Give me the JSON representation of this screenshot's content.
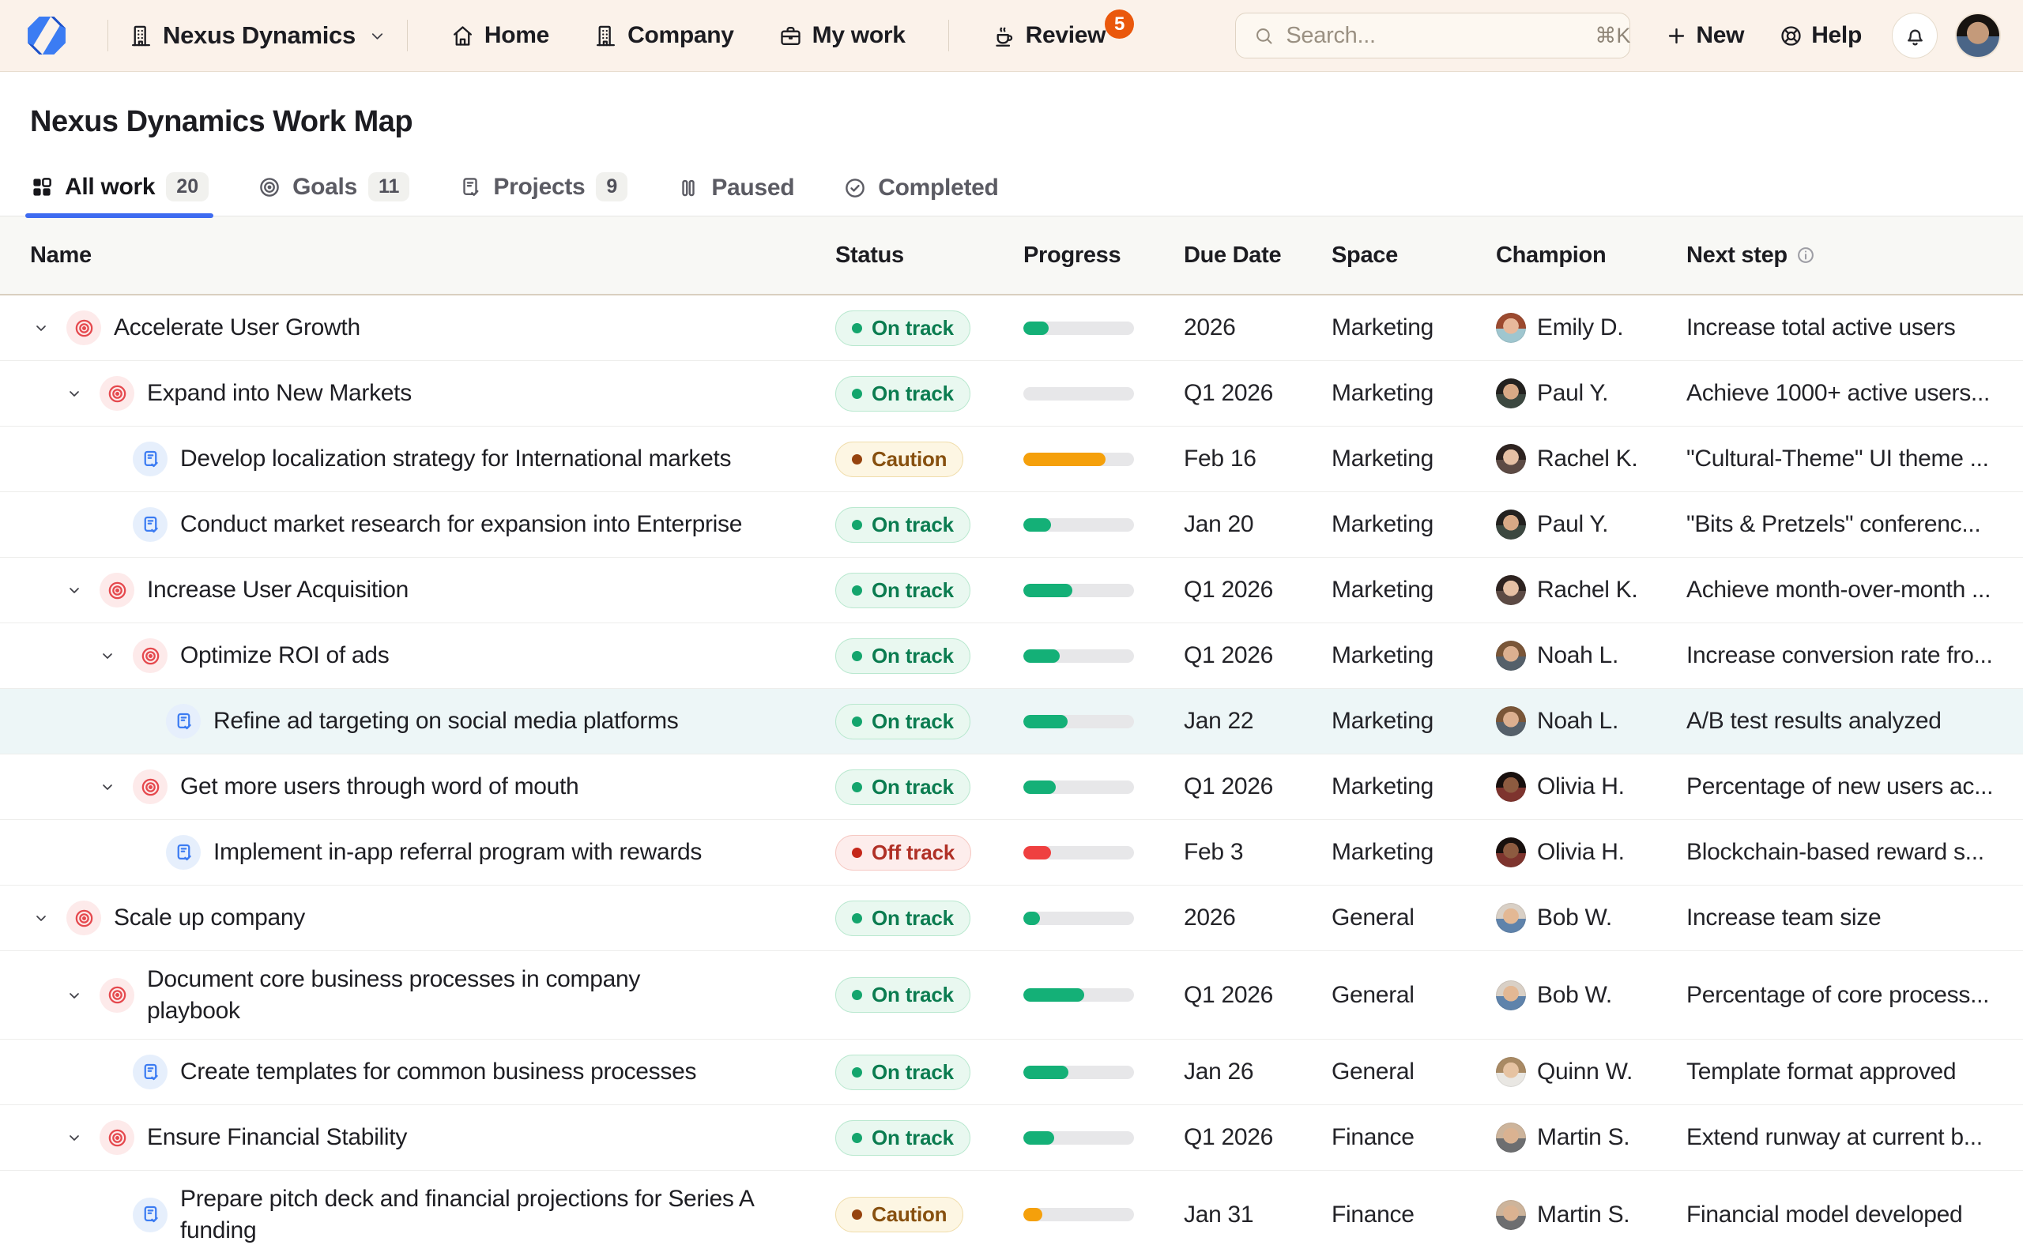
{
  "colors": {
    "topbar_bg": "#fbf2ea",
    "accent_blue": "#3e6bf0",
    "badge_orange": "#ea580c",
    "logo_blue": "#3b7cf3",
    "logo_blue_dark": "#1c50c8",
    "row_highlight": "#edf6f7",
    "progress_track": "#e7e7e9",
    "goal_icon": {
      "fg": "#e5484d",
      "bg": "#fdeaea"
    },
    "project_icon": {
      "fg": "#3c7cf2",
      "bg": "#e6effc"
    },
    "status": {
      "on_track": {
        "label": "On track",
        "bg": "#e9f8f0",
        "border": "#b9e8cf",
        "text": "#0b7c50",
        "dot": "#14a56d",
        "bar": "#14b077"
      },
      "caution": {
        "label": "Caution",
        "bg": "#fdf6e3",
        "border": "#f0ddab",
        "text": "#87500f",
        "dot": "#96430e",
        "bar": "#f5a00b"
      },
      "off_track": {
        "label": "Off track",
        "bg": "#fdedec",
        "border": "#f6c8c2",
        "text": "#b03026",
        "dot": "#c5271a",
        "bar": "#ef4040"
      }
    }
  },
  "topbar": {
    "workspace": {
      "label": "Nexus Dynamics"
    },
    "nav": [
      {
        "id": "home",
        "label": "Home",
        "icon": "home"
      },
      {
        "id": "company",
        "label": "Company",
        "icon": "building"
      },
      {
        "id": "my-work",
        "label": "My work",
        "icon": "briefcase"
      }
    ],
    "review": {
      "label": "Review",
      "icon": "coffee",
      "badge": "5"
    },
    "search": {
      "placeholder": "Search...",
      "shortcut": "⌘K"
    },
    "new_button": {
      "label": "New"
    },
    "help_button": {
      "label": "Help"
    }
  },
  "page": {
    "title": "Nexus Dynamics Work Map"
  },
  "tabs": [
    {
      "id": "all-work",
      "label": "All work",
      "count": "20",
      "icon": "grid",
      "active": true
    },
    {
      "id": "goals",
      "label": "Goals",
      "count": "11",
      "icon": "target",
      "active": false
    },
    {
      "id": "projects",
      "label": "Projects",
      "count": "9",
      "icon": "clipboard",
      "active": false
    },
    {
      "id": "paused",
      "label": "Paused",
      "count": null,
      "icon": "pause",
      "active": false
    },
    {
      "id": "completed",
      "label": "Completed",
      "count": null,
      "icon": "check-circle",
      "active": false
    }
  ],
  "table": {
    "columns": [
      {
        "key": "name",
        "label": "Name"
      },
      {
        "key": "status",
        "label": "Status"
      },
      {
        "key": "progress",
        "label": "Progress"
      },
      {
        "key": "due",
        "label": "Due Date"
      },
      {
        "key": "space",
        "label": "Space"
      },
      {
        "key": "champion",
        "label": "Champion"
      },
      {
        "key": "next",
        "label": "Next step",
        "info_icon": true
      }
    ],
    "rows": [
      {
        "kind": "goal",
        "level": 0,
        "expandable": true,
        "tall": false,
        "highlight": false,
        "name": "Accelerate User Growth",
        "status": "on_track",
        "progress": 23,
        "due": "2026",
        "space": "Marketing",
        "champion": "Emily D.",
        "avatar": "emily",
        "next": "Increase total active users"
      },
      {
        "kind": "goal",
        "level": 1,
        "expandable": true,
        "tall": false,
        "highlight": false,
        "name": "Expand into New Markets",
        "status": "on_track",
        "progress": 0,
        "due": "Q1 2026",
        "space": "Marketing",
        "champion": "Paul Y.",
        "avatar": "paul",
        "next": "Achieve 1000+ active users..."
      },
      {
        "kind": "project",
        "level": 2,
        "expandable": false,
        "tall": false,
        "highlight": false,
        "name": "Develop localization strategy for International markets",
        "status": "caution",
        "progress": 74,
        "due": "Feb 16",
        "space": "Marketing",
        "champion": "Rachel K.",
        "avatar": "rachel",
        "next": "\"Cultural-Theme\" UI theme ..."
      },
      {
        "kind": "project",
        "level": 2,
        "expandable": false,
        "tall": false,
        "highlight": false,
        "name": "Conduct market research for expansion into Enterprise",
        "status": "on_track",
        "progress": 25,
        "due": "Jan 20",
        "space": "Marketing",
        "champion": "Paul Y.",
        "avatar": "paul",
        "next": "\"Bits & Pretzels\" conferenc..."
      },
      {
        "kind": "goal",
        "level": 1,
        "expandable": true,
        "tall": false,
        "highlight": false,
        "name": "Increase User Acquisition",
        "status": "on_track",
        "progress": 44,
        "due": "Q1 2026",
        "space": "Marketing",
        "champion": "Rachel K.",
        "avatar": "rachel",
        "next": "Achieve month-over-month ..."
      },
      {
        "kind": "goal",
        "level": 2,
        "expandable": true,
        "tall": false,
        "highlight": false,
        "name": "Optimize ROI of ads",
        "status": "on_track",
        "progress": 33,
        "due": "Q1 2026",
        "space": "Marketing",
        "champion": "Noah L.",
        "avatar": "noah",
        "next": "Increase conversion rate fro..."
      },
      {
        "kind": "project",
        "level": 3,
        "expandable": false,
        "tall": false,
        "highlight": true,
        "name": "Refine ad targeting on social media platforms",
        "status": "on_track",
        "progress": 40,
        "due": "Jan 22",
        "space": "Marketing",
        "champion": "Noah L.",
        "avatar": "noah",
        "next": "A/B test results analyzed"
      },
      {
        "kind": "goal",
        "level": 2,
        "expandable": true,
        "tall": false,
        "highlight": false,
        "name": "Get more users through word of mouth",
        "status": "on_track",
        "progress": 29,
        "due": "Q1 2026",
        "space": "Marketing",
        "champion": "Olivia H.",
        "avatar": "olivia",
        "next": "Percentage of new users ac..."
      },
      {
        "kind": "project",
        "level": 3,
        "expandable": false,
        "tall": false,
        "highlight": false,
        "name": "Implement in-app referral program with rewards",
        "status": "off_track",
        "progress": 25,
        "due": "Feb 3",
        "space": "Marketing",
        "champion": "Olivia H.",
        "avatar": "olivia",
        "next": "Blockchain-based reward s..."
      },
      {
        "kind": "goal",
        "level": 0,
        "expandable": true,
        "tall": false,
        "highlight": false,
        "name": "Scale up company",
        "status": "on_track",
        "progress": 15,
        "due": "2026",
        "space": "General",
        "champion": "Bob W.",
        "avatar": "bob",
        "next": "Increase team size"
      },
      {
        "kind": "goal",
        "level": 1,
        "expandable": true,
        "tall": true,
        "highlight": false,
        "name": "Document core business processes in company playbook",
        "status": "on_track",
        "progress": 55,
        "due": "Q1 2026",
        "space": "General",
        "champion": "Bob W.",
        "avatar": "bob",
        "next": "Percentage of core process..."
      },
      {
        "kind": "project",
        "level": 2,
        "expandable": false,
        "tall": false,
        "highlight": false,
        "name": "Create templates for common business processes",
        "status": "on_track",
        "progress": 41,
        "due": "Jan 26",
        "space": "General",
        "champion": "Quinn W.",
        "avatar": "quinn",
        "next": "Template format approved"
      },
      {
        "kind": "goal",
        "level": 1,
        "expandable": true,
        "tall": false,
        "highlight": false,
        "name": "Ensure Financial Stability",
        "status": "on_track",
        "progress": 28,
        "due": "Q1 2026",
        "space": "Finance",
        "champion": "Martin S.",
        "avatar": "martin",
        "next": "Extend runway at current b..."
      },
      {
        "kind": "project",
        "level": 2,
        "expandable": false,
        "tall": true,
        "highlight": false,
        "name": "Prepare pitch deck and financial projections for Series A funding",
        "status": "caution",
        "progress": 17,
        "due": "Jan 31",
        "space": "Finance",
        "champion": "Martin S.",
        "avatar": "martin",
        "next": "Financial model developed"
      }
    ]
  },
  "avatars": {
    "me": {
      "hair": "#171310",
      "skin": "#c49a7a",
      "shirt": "#4a6587"
    },
    "emily": {
      "hair": "#9c4a2f",
      "skin": "#e8b99b",
      "shirt": "#9fc6cf"
    },
    "paul": {
      "hair": "#23211f",
      "skin": "#d8a986",
      "shirt": "#3c4840"
    },
    "rachel": {
      "hair": "#2e2320",
      "skin": "#e6c0a4",
      "shirt": "#5c4a44"
    },
    "noah": {
      "hair": "#7a5638",
      "skin": "#dcb090",
      "shirt": "#55606a"
    },
    "olivia": {
      "hair": "#18100e",
      "skin": "#8d5b40",
      "shirt": "#7e342e"
    },
    "bob": {
      "hair": "#d9d0c6",
      "skin": "#e3b894",
      "shirt": "#5f83ab"
    },
    "quinn": {
      "hair": "#a98a64",
      "skin": "#e6c3a2",
      "shirt": "#e9e7e3"
    },
    "martin": {
      "hair": "#cdb49b",
      "skin": "#dab291",
      "shirt": "#6d6e70"
    }
  }
}
